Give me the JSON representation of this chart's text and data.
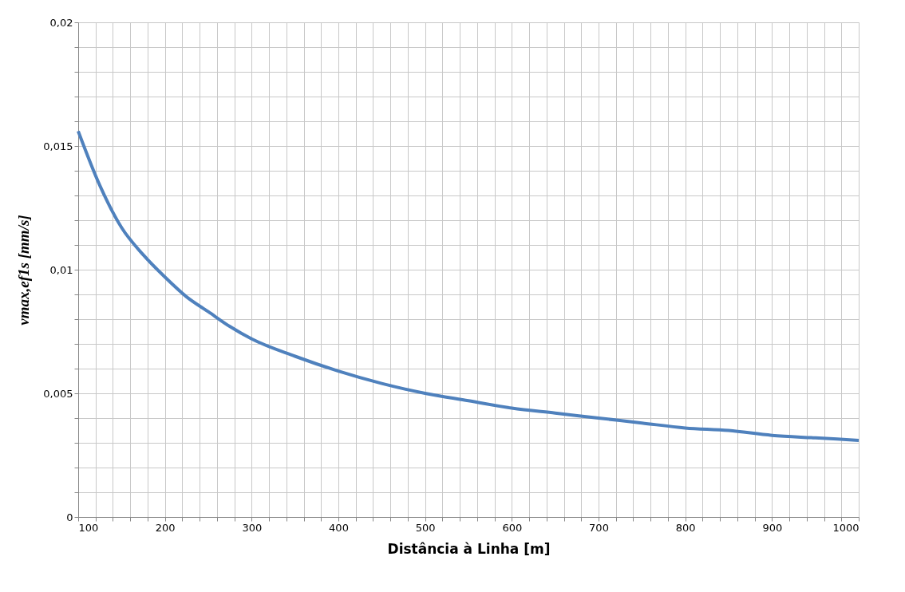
{
  "chart_data": {
    "type": "line",
    "xlabel": "Distância à Linha [m]",
    "ylabel": "vmax,ef1s [mm/s]",
    "x": [
      100,
      125,
      150,
      175,
      200,
      225,
      250,
      275,
      300,
      350,
      400,
      450,
      500,
      550,
      600,
      650,
      700,
      750,
      800,
      850,
      900,
      950,
      1000
    ],
    "series": [
      {
        "color": "#4f81bd",
        "values": [
          0.0156,
          0.0134,
          0.0117,
          0.0106,
          0.0097,
          0.0089,
          0.0083,
          0.0077,
          0.0072,
          0.0065,
          0.0059,
          0.0054,
          0.005,
          0.0047,
          0.0044,
          0.0042,
          0.004,
          0.0038,
          0.0036,
          0.0035,
          0.0033,
          0.0032,
          0.0031
        ]
      }
    ],
    "xlim": [
      100,
      1000
    ],
    "ylim": [
      0,
      0.02
    ],
    "xticks": [
      100,
      200,
      300,
      400,
      500,
      600,
      700,
      800,
      900,
      1000
    ],
    "yticks": [
      {
        "value": 0,
        "label": "0"
      },
      {
        "value": 0.005,
        "label": "0,005"
      },
      {
        "value": 0.01,
        "label": "0,01"
      },
      {
        "value": 0.015,
        "label": "0,015"
      },
      {
        "value": 0.02,
        "label": "0,02"
      }
    ],
    "grid": true,
    "marker": "none",
    "line_style": "solid"
  }
}
